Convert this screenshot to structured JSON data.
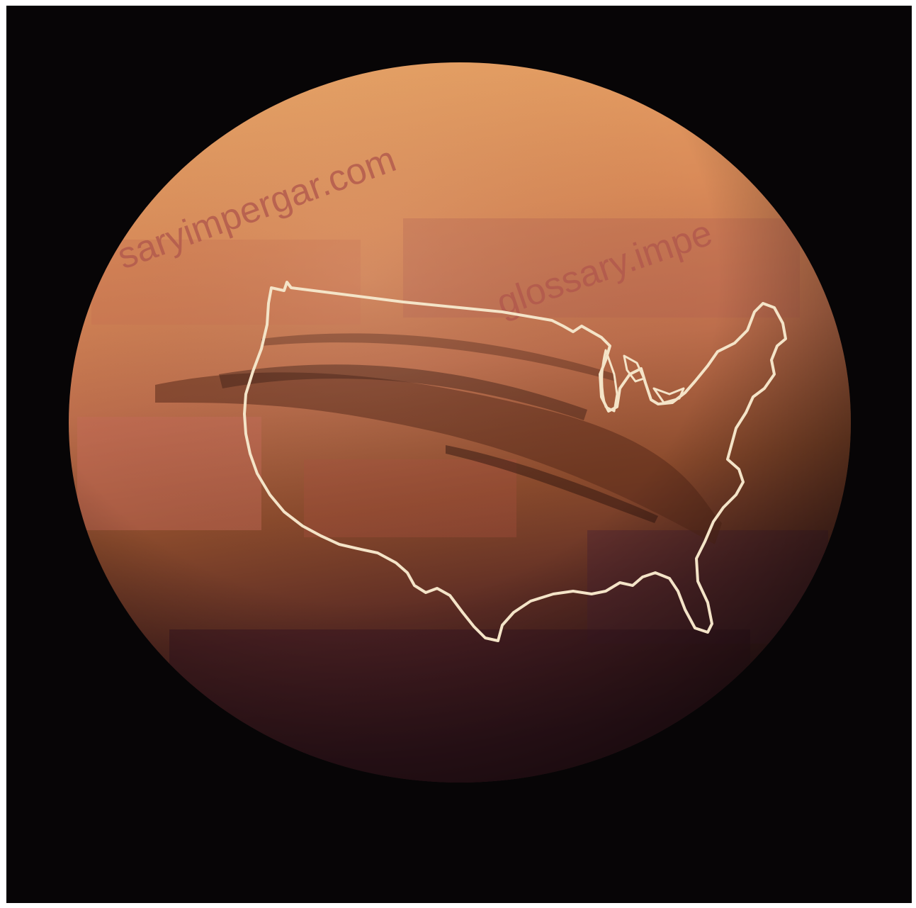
{
  "image": {
    "subject": "Mars",
    "overlay": "contiguous-united-states-outline"
  },
  "colors": {
    "background": "#070506",
    "surface_light": "#e8a467",
    "surface_mid": "#c77a4f",
    "surface_dark": "#6d3a22",
    "surface_shadow": "#3a1a1c",
    "outline": "#f4e4c8",
    "watermark": "#b0584c"
  },
  "watermarks": [
    "saryimpergar.com",
    "glossary.impe"
  ]
}
